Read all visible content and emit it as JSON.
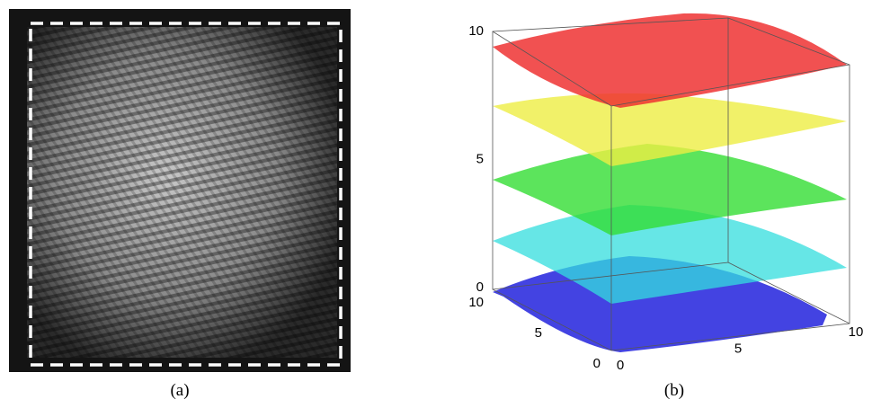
{
  "panels": [
    {
      "label": "(a)"
    },
    {
      "label": "(b)",
      "z_ticks": [
        0,
        5,
        10
      ],
      "y_ticks": [
        0,
        5,
        10
      ],
      "x_ticks": [
        0,
        5,
        10
      ]
    }
  ]
}
